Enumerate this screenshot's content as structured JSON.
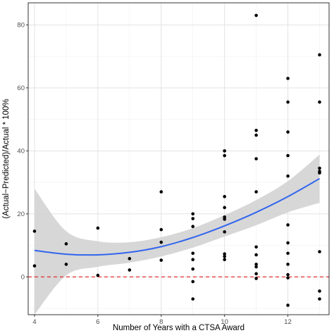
{
  "chart_data": {
    "type": "scatter",
    "title": "",
    "xlabel": "Number of Years with a CTSA Award",
    "ylabel": "(Actual−Predicted)/Actual * 100%",
    "xlim": [
      3.8,
      13.3
    ],
    "ylim": [
      -12,
      87
    ],
    "x_ticks": [
      4,
      6,
      8,
      10,
      12
    ],
    "y_ticks": [
      0,
      20,
      40,
      60,
      80
    ],
    "grid": true,
    "legend": "none",
    "points": [
      {
        "x": 4,
        "y": 14.5
      },
      {
        "x": 4,
        "y": 3.5
      },
      {
        "x": 5,
        "y": 10.5
      },
      {
        "x": 5,
        "y": 4
      },
      {
        "x": 6,
        "y": 15.5
      },
      {
        "x": 6,
        "y": 0.5
      },
      {
        "x": 7,
        "y": 5.8
      },
      {
        "x": 7,
        "y": 2.2
      },
      {
        "x": 8,
        "y": 27
      },
      {
        "x": 8,
        "y": 15
      },
      {
        "x": 8,
        "y": 11
      },
      {
        "x": 8,
        "y": 5.3
      },
      {
        "x": 9,
        "y": 20
      },
      {
        "x": 9,
        "y": 18.5
      },
      {
        "x": 9,
        "y": 16
      },
      {
        "x": 9,
        "y": 7.5
      },
      {
        "x": 9,
        "y": 5.5
      },
      {
        "x": 9,
        "y": 2.5
      },
      {
        "x": 9,
        "y": -1.5
      },
      {
        "x": 9,
        "y": -7
      },
      {
        "x": 10,
        "y": 40
      },
      {
        "x": 10,
        "y": 38.5
      },
      {
        "x": 10,
        "y": 25.5
      },
      {
        "x": 10,
        "y": 22
      },
      {
        "x": 10,
        "y": 19
      },
      {
        "x": 10,
        "y": 18.3
      },
      {
        "x": 10,
        "y": 14.3
      },
      {
        "x": 10,
        "y": 7.3
      },
      {
        "x": 10,
        "y": 6.5
      },
      {
        "x": 10,
        "y": 5.5
      },
      {
        "x": 11,
        "y": 83
      },
      {
        "x": 11,
        "y": 46.5
      },
      {
        "x": 11,
        "y": 45
      },
      {
        "x": 11,
        "y": 37.5
      },
      {
        "x": 11,
        "y": 27
      },
      {
        "x": 11,
        "y": 9.5
      },
      {
        "x": 11,
        "y": 7
      },
      {
        "x": 11,
        "y": 4
      },
      {
        "x": 11,
        "y": 3.2
      },
      {
        "x": 11,
        "y": 1
      },
      {
        "x": 11,
        "y": -0.5
      },
      {
        "x": 12,
        "y": 63
      },
      {
        "x": 12,
        "y": 55.5
      },
      {
        "x": 12,
        "y": 46
      },
      {
        "x": 12,
        "y": 38.5
      },
      {
        "x": 12,
        "y": 32
      },
      {
        "x": 12,
        "y": 16.5
      },
      {
        "x": 12,
        "y": 10.8
      },
      {
        "x": 12,
        "y": 7.5
      },
      {
        "x": 12,
        "y": 4
      },
      {
        "x": 12,
        "y": 0.7
      },
      {
        "x": 12,
        "y": -0.3
      },
      {
        "x": 12,
        "y": -9
      },
      {
        "x": 13,
        "y": 70.5
      },
      {
        "x": 13,
        "y": 55.5
      },
      {
        "x": 13,
        "y": 34.5
      },
      {
        "x": 13,
        "y": 33.5
      },
      {
        "x": 13,
        "y": 33
      },
      {
        "x": 13,
        "y": 8
      },
      {
        "x": 13,
        "y": -4.5
      },
      {
        "x": 13,
        "y": -7
      }
    ],
    "smooth": {
      "color": "#3366ee",
      "x": [
        4,
        5,
        6,
        7,
        8,
        9,
        10,
        11,
        12,
        13
      ],
      "y": [
        8.4,
        7.2,
        7.0,
        7.8,
        9.6,
        12.5,
        16.2,
        20.5,
        25.5,
        31.2
      ],
      "ci_lower": [
        -12,
        0.5,
        3.2,
        4.5,
        6.5,
        9.3,
        12.8,
        16.4,
        20.5,
        23.5
      ],
      "ci_upper": [
        28,
        14.5,
        11.3,
        11.0,
        12.6,
        15.5,
        19.6,
        24.4,
        30.4,
        38.8
      ],
      "band_color": "#d3d3d3"
    },
    "reference_line": {
      "y": 0,
      "color": "#e41a1c",
      "style": "dashed"
    }
  }
}
